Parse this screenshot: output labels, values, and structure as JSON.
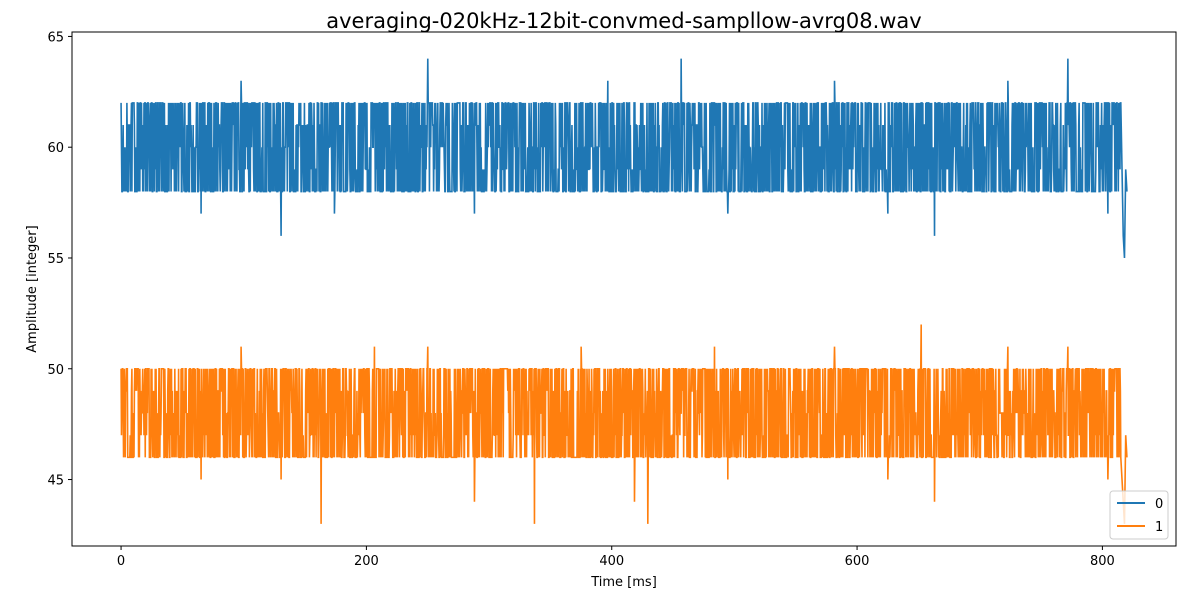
{
  "chart_data": {
    "type": "line",
    "title": "averaging-020kHz-12bit-convmed-sampllow-avrg08.wav",
    "xlabel": "Time [ms]",
    "ylabel": "Amplitude [integer]",
    "xlim": [
      -40,
      860
    ],
    "ylim": [
      42.0,
      65.2
    ],
    "xticks": [
      0,
      200,
      400,
      600,
      800
    ],
    "yticks": [
      45,
      50,
      55,
      60,
      65
    ],
    "legend_position": "lower-right",
    "grid": false,
    "duration_ms": 820,
    "series": [
      {
        "name": "0",
        "color": "#1f77b4",
        "baseline": 60,
        "typical_range": [
          58,
          62
        ],
        "values": [
          62,
          58,
          61,
          59,
          62,
          58,
          60,
          61,
          58,
          62,
          59,
          60,
          57,
          62,
          58,
          61,
          60,
          58,
          63,
          59,
          62,
          58,
          60,
          61,
          56,
          62,
          59,
          58,
          61,
          60,
          62,
          58,
          57,
          61,
          59,
          62,
          60,
          58,
          61,
          59,
          62,
          58,
          60,
          62,
          58,
          61,
          64,
          59,
          60,
          58,
          62,
          61,
          58,
          57,
          60,
          62,
          59,
          58,
          61,
          62,
          58,
          60,
          59,
          61,
          62,
          58,
          60,
          61,
          58,
          62,
          59,
          60,
          58,
          63,
          61,
          58,
          60,
          62,
          59,
          58,
          61,
          60,
          62,
          58,
          64,
          59,
          61,
          60,
          58,
          62,
          59,
          57,
          61,
          60,
          62,
          58,
          60,
          61,
          58,
          62,
          59,
          60,
          58,
          61,
          62,
          58,
          60,
          63,
          59,
          58,
          61,
          62,
          58,
          60,
          59,
          57,
          62,
          58,
          61,
          60,
          62,
          58,
          56,
          61,
          59,
          62,
          60,
          58,
          61,
          59,
          62,
          58,
          60,
          63,
          58,
          61,
          60,
          58,
          62,
          59,
          60,
          58,
          64,
          61,
          59,
          62,
          58,
          60,
          57,
          61,
          58,
          62,
          59,
          60,
          58,
          55,
          58
        ],
        "min": 55,
        "max": 64
      },
      {
        "name": "1",
        "color": "#ff7f0e",
        "baseline": 48,
        "typical_range": [
          46,
          50
        ],
        "values": [
          50,
          46,
          49,
          47,
          50,
          46,
          48,
          49,
          46,
          50,
          47,
          48,
          45,
          50,
          46,
          49,
          48,
          46,
          51,
          47,
          50,
          46,
          48,
          49,
          45,
          50,
          47,
          46,
          49,
          48,
          43,
          50,
          46,
          49,
          47,
          50,
          48,
          46,
          51,
          47,
          50,
          46,
          48,
          50,
          46,
          49,
          51,
          47,
          48,
          46,
          50,
          49,
          46,
          44,
          48,
          50,
          47,
          46,
          49,
          50,
          46,
          48,
          43,
          49,
          50,
          46,
          48,
          49,
          46,
          51,
          47,
          48,
          46,
          50,
          49,
          46,
          48,
          44,
          47,
          43,
          49,
          48,
          50,
          46,
          48,
          47,
          49,
          48,
          46,
          51,
          47,
          45,
          49,
          48,
          50,
          46,
          48,
          49,
          46,
          50,
          47,
          48,
          46,
          49,
          50,
          46,
          48,
          51,
          47,
          46,
          49,
          50,
          46,
          48,
          47,
          45,
          50,
          46,
          49,
          48,
          52,
          46,
          44,
          49,
          47,
          50,
          48,
          46,
          49,
          47,
          50,
          46,
          48,
          51,
          46,
          49,
          48,
          46,
          50,
          47,
          48,
          46,
          51,
          49,
          47,
          50,
          46,
          48,
          45,
          49,
          46,
          50,
          47,
          48,
          46,
          44,
          46
        ],
        "min": 43,
        "max": 52
      }
    ]
  }
}
